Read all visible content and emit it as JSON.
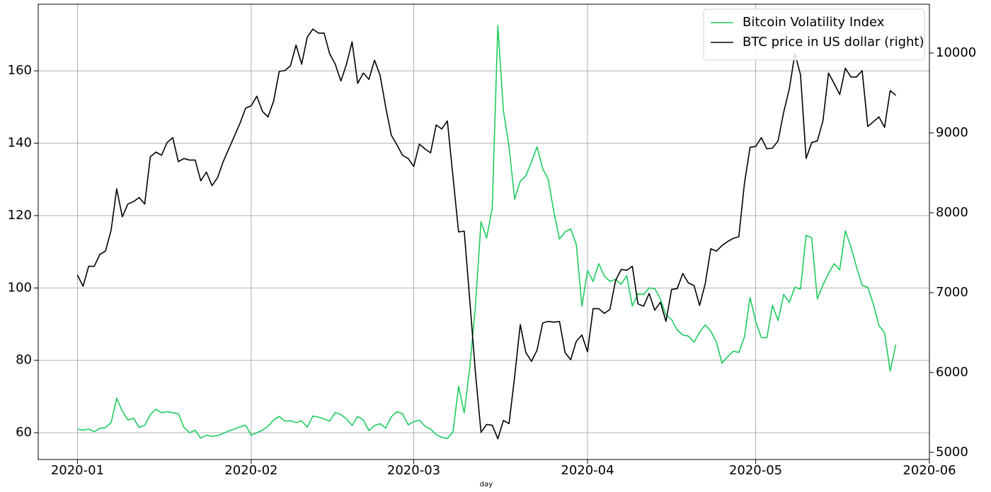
{
  "chart_data": {
    "type": "line",
    "xlabel": "day",
    "x": [
      "2020-01-01",
      "2020-01-02",
      "2020-01-03",
      "2020-01-04",
      "2020-01-05",
      "2020-01-06",
      "2020-01-07",
      "2020-01-08",
      "2020-01-09",
      "2020-01-10",
      "2020-01-11",
      "2020-01-12",
      "2020-01-13",
      "2020-01-14",
      "2020-01-15",
      "2020-01-16",
      "2020-01-17",
      "2020-01-18",
      "2020-01-19",
      "2020-01-20",
      "2020-01-21",
      "2020-01-22",
      "2020-01-23",
      "2020-01-24",
      "2020-01-25",
      "2020-01-26",
      "2020-01-27",
      "2020-01-28",
      "2020-01-29",
      "2020-01-30",
      "2020-01-31",
      "2020-02-01",
      "2020-02-02",
      "2020-02-03",
      "2020-02-04",
      "2020-02-05",
      "2020-02-06",
      "2020-02-07",
      "2020-02-08",
      "2020-02-09",
      "2020-02-10",
      "2020-02-11",
      "2020-02-12",
      "2020-02-13",
      "2020-02-14",
      "2020-02-15",
      "2020-02-16",
      "2020-02-17",
      "2020-02-18",
      "2020-02-19",
      "2020-02-20",
      "2020-02-21",
      "2020-02-22",
      "2020-02-23",
      "2020-02-24",
      "2020-02-25",
      "2020-02-26",
      "2020-02-27",
      "2020-02-28",
      "2020-02-29",
      "2020-03-01",
      "2020-03-02",
      "2020-03-03",
      "2020-03-04",
      "2020-03-05",
      "2020-03-06",
      "2020-03-07",
      "2020-03-08",
      "2020-03-09",
      "2020-03-10",
      "2020-03-11",
      "2020-03-12",
      "2020-03-13",
      "2020-03-14",
      "2020-03-15",
      "2020-03-16",
      "2020-03-17",
      "2020-03-18",
      "2020-03-19",
      "2020-03-20",
      "2020-03-21",
      "2020-03-22",
      "2020-03-23",
      "2020-03-24",
      "2020-03-25",
      "2020-03-26",
      "2020-03-27",
      "2020-03-28",
      "2020-03-29",
      "2020-03-30",
      "2020-03-31",
      "2020-04-01",
      "2020-04-02",
      "2020-04-03",
      "2020-04-04",
      "2020-04-05",
      "2020-04-06",
      "2020-04-07",
      "2020-04-08",
      "2020-04-09",
      "2020-04-10",
      "2020-04-11",
      "2020-04-12",
      "2020-04-13",
      "2020-04-14",
      "2020-04-15",
      "2020-04-16",
      "2020-04-17",
      "2020-04-18",
      "2020-04-19",
      "2020-04-20",
      "2020-04-21",
      "2020-04-22",
      "2020-04-23",
      "2020-04-24",
      "2020-04-25",
      "2020-04-26",
      "2020-04-27",
      "2020-04-28",
      "2020-04-29",
      "2020-04-30",
      "2020-05-01",
      "2020-05-02",
      "2020-05-03",
      "2020-05-04",
      "2020-05-05",
      "2020-05-06",
      "2020-05-07",
      "2020-05-08",
      "2020-05-09",
      "2020-05-10",
      "2020-05-11",
      "2020-05-12",
      "2020-05-13",
      "2020-05-14",
      "2020-05-15",
      "2020-05-16",
      "2020-05-17",
      "2020-05-18",
      "2020-05-19",
      "2020-05-20",
      "2020-05-21",
      "2020-05-22",
      "2020-05-23",
      "2020-05-24",
      "2020-05-25",
      "2020-05-26"
    ],
    "series": [
      {
        "name": "Bitcoin Volatility Index",
        "color": "#1ecb5c",
        "axis": "y",
        "values": [
          61,
          60.7,
          61,
          60.3,
          61.2,
          61.4,
          62.8,
          69.5,
          66,
          63.5,
          64,
          61.5,
          62,
          65,
          66.5,
          65.5,
          65.8,
          65.5,
          65.3,
          61.5,
          60,
          60.7,
          58.5,
          59.3,
          59,
          59.2,
          59.8,
          60.5,
          61,
          61.6,
          62.1,
          59.3,
          60,
          60.7,
          61.8,
          63.5,
          64.5,
          63.2,
          63.3,
          62.8,
          63.3,
          61.5,
          64.6,
          64.3,
          63.8,
          63.2,
          65.6,
          65,
          63.8,
          62,
          64.5,
          63.5,
          60.6,
          62,
          62.5,
          61.3,
          64.4,
          65.8,
          65.2,
          62.2,
          63,
          63.5,
          61.8,
          61,
          59.5,
          58.7,
          58.4,
          60.2,
          72.8,
          65.5,
          78,
          95,
          118.3,
          113.8,
          122,
          172.5,
          149,
          139,
          124.5,
          129.5,
          131,
          134.8,
          139,
          133,
          130,
          121,
          113.5,
          115.5,
          116.3,
          112,
          95,
          104.8,
          101.8,
          106.7,
          103.3,
          101.8,
          102.4,
          101,
          103.4,
          95,
          98.4,
          98.2,
          100,
          99.8,
          97,
          92.5,
          91.3,
          88.4,
          87,
          86.7,
          85,
          87.8,
          89.8,
          88,
          85,
          79.2,
          81,
          82.5,
          82.2,
          86.5,
          97.4,
          90.8,
          86.3,
          86.2,
          95.2,
          91,
          98.2,
          96,
          100.2,
          99.7,
          114.6,
          113.8,
          97,
          100.8,
          104,
          106.7,
          105,
          115.8,
          111.3,
          105.8,
          100.7,
          100.2,
          95.5,
          89.6,
          87.6,
          77,
          84.3
        ]
      },
      {
        "name": "BTC price in US dollar (right)",
        "color": "#000000",
        "axis": "y2",
        "values": [
          7220,
          7080,
          7330,
          7330,
          7480,
          7520,
          7780,
          8300,
          7950,
          8110,
          8140,
          8190,
          8110,
          8700,
          8760,
          8720,
          8880,
          8940,
          8640,
          8680,
          8660,
          8660,
          8400,
          8510,
          8340,
          8440,
          8640,
          8800,
          8960,
          9120,
          9310,
          9340,
          9460,
          9270,
          9200,
          9400,
          9770,
          9780,
          9840,
          10100,
          9860,
          10200,
          10300,
          10250,
          10250,
          9990,
          9860,
          9650,
          9860,
          10140,
          9620,
          9750,
          9670,
          9910,
          9720,
          9320,
          8970,
          8850,
          8720,
          8680,
          8580,
          8860,
          8800,
          8750,
          9100,
          9050,
          9150,
          8450,
          7760,
          7770,
          6900,
          6000,
          5250,
          5350,
          5340,
          5170,
          5400,
          5360,
          5950,
          6600,
          6250,
          6140,
          6280,
          6620,
          6640,
          6630,
          6640,
          6250,
          6160,
          6390,
          6470,
          6260,
          6800,
          6800,
          6740,
          6790,
          7150,
          7290,
          7280,
          7330,
          6860,
          6830,
          6990,
          6780,
          6880,
          6640,
          7040,
          7050,
          7240,
          7120,
          7090,
          6840,
          7110,
          7550,
          7520,
          7590,
          7640,
          7680,
          7700,
          8370,
          8820,
          8830,
          8940,
          8800,
          8810,
          8900,
          9260,
          9550,
          9990,
          9730,
          8680,
          8880,
          8900,
          9150,
          9750,
          9620,
          9480,
          9810,
          9700,
          9700,
          9780,
          9080,
          9140,
          9200,
          9070,
          9530,
          9470
        ]
      }
    ],
    "xlim": [
      "2019-12-25",
      "2020-06-01"
    ],
    "xticks": [
      {
        "value": "2020-01-01",
        "label": "2020-01"
      },
      {
        "value": "2020-02-01",
        "label": "2020-02"
      },
      {
        "value": "2020-03-01",
        "label": "2020-03"
      },
      {
        "value": "2020-04-01",
        "label": "2020-04"
      },
      {
        "value": "2020-05-01",
        "label": "2020-05"
      },
      {
        "value": "2020-06-01",
        "label": "2020-06"
      }
    ],
    "ylim": [
      52.6,
      178.4
    ],
    "yticks": [
      60,
      80,
      100,
      120,
      140,
      160
    ],
    "y2lim": [
      4911,
      10611
    ],
    "y2ticks": [
      5000,
      6000,
      7000,
      8000,
      9000,
      10000
    ],
    "grid": true,
    "legend": "upper right"
  }
}
